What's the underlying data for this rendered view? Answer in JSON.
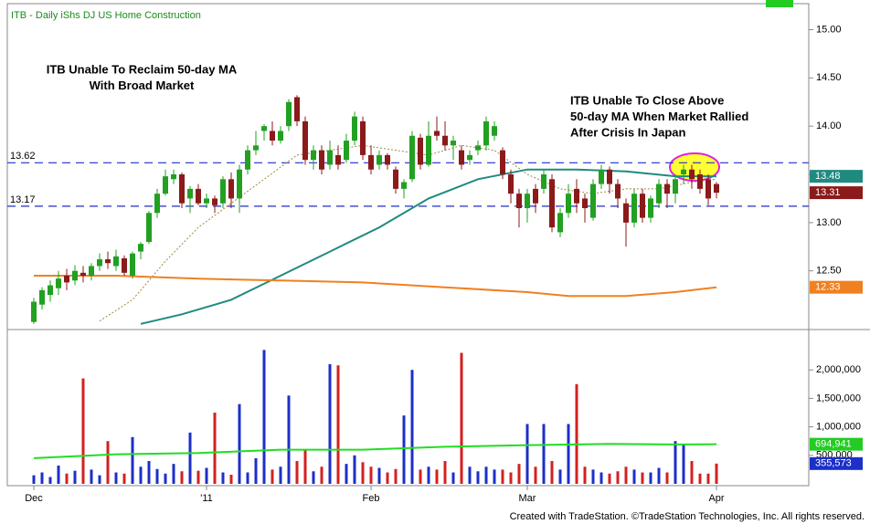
{
  "chart_data": {
    "type": "candlestick",
    "title": "ITB - Daily  iShs DJ US Home Construction",
    "categories": [
      "Dec",
      null,
      null,
      null,
      null,
      null,
      null,
      null,
      null,
      null,
      null,
      null,
      null,
      null,
      null,
      null,
      null,
      null,
      null,
      null,
      null,
      "'11",
      null,
      null,
      null,
      null,
      null,
      null,
      null,
      null,
      null,
      null,
      null,
      null,
      null,
      null,
      null,
      null,
      null,
      null,
      null,
      "Feb",
      null,
      null,
      null,
      null,
      null,
      null,
      null,
      null,
      null,
      null,
      null,
      null,
      null,
      null,
      null,
      null,
      null,
      null,
      "Mar",
      null,
      null,
      null,
      null,
      null,
      null,
      null,
      null,
      null,
      null,
      null,
      null,
      null,
      null,
      null,
      null,
      null,
      null,
      null,
      null,
      null,
      null,
      "Apr"
    ],
    "up_color": "#22a022",
    "down_color": "#8b1a1a",
    "ohlc": {
      "open": [
        11.97,
        12.15,
        12.25,
        12.32,
        12.45,
        12.4,
        12.48,
        12.45,
        12.55,
        12.62,
        12.55,
        12.63,
        12.45,
        12.7,
        12.8,
        13.1,
        13.3,
        13.45,
        13.5,
        13.25,
        13.35,
        13.2,
        13.25,
        13.2,
        13.45,
        13.25,
        13.55,
        13.75,
        13.95,
        13.95,
        13.85,
        14.0,
        14.3,
        14.05,
        13.65,
        13.75,
        13.6,
        13.7,
        13.65,
        13.85,
        14.05,
        13.7,
        13.6,
        13.7,
        13.55,
        13.35,
        13.45,
        13.88,
        13.6,
        13.95,
        13.9,
        13.8,
        13.75,
        13.65,
        13.75,
        13.8,
        13.9,
        13.75,
        13.5,
        13.3,
        13.15,
        13.35,
        13.35,
        13.45,
        12.9,
        13.1,
        13.35,
        13.25,
        13.05,
        13.4,
        13.55,
        13.4,
        13.2,
        13.0,
        13.3,
        13.05,
        13.2,
        13.4,
        13.3,
        13.5,
        13.55,
        13.5,
        13.45,
        13.4
      ],
      "high": [
        12.22,
        12.33,
        12.4,
        12.5,
        12.52,
        12.56,
        12.55,
        12.58,
        12.68,
        12.7,
        12.72,
        12.66,
        12.7,
        12.8,
        13.12,
        13.35,
        13.55,
        13.55,
        13.52,
        13.38,
        13.4,
        13.3,
        13.28,
        13.48,
        13.52,
        13.6,
        13.8,
        13.95,
        14.02,
        14.05,
        14.0,
        14.28,
        14.32,
        14.1,
        13.8,
        13.8,
        13.85,
        13.8,
        13.92,
        14.15,
        14.1,
        13.8,
        13.75,
        13.72,
        13.58,
        13.45,
        13.95,
        13.92,
        14.05,
        14.1,
        14.05,
        13.9,
        13.8,
        13.75,
        13.85,
        14.1,
        14.05,
        13.78,
        13.55,
        13.35,
        13.35,
        13.4,
        13.55,
        13.5,
        13.15,
        13.4,
        13.45,
        13.3,
        13.45,
        13.6,
        13.58,
        13.45,
        13.25,
        13.35,
        13.35,
        13.28,
        13.45,
        13.45,
        13.5,
        13.6,
        13.6,
        13.55,
        13.5,
        13.42
      ],
      "low": [
        11.95,
        12.1,
        12.18,
        12.25,
        12.3,
        12.35,
        12.38,
        12.4,
        12.5,
        12.52,
        12.5,
        12.45,
        12.42,
        12.62,
        12.78,
        13.05,
        13.28,
        13.4,
        13.15,
        13.1,
        13.18,
        13.15,
        13.1,
        13.15,
        13.15,
        13.1,
        13.5,
        13.7,
        13.85,
        13.8,
        13.82,
        13.95,
        14.0,
        13.6,
        13.55,
        13.5,
        13.55,
        13.55,
        13.62,
        13.8,
        13.65,
        13.5,
        13.55,
        13.55,
        13.3,
        13.25,
        13.42,
        13.55,
        13.58,
        13.85,
        13.75,
        13.65,
        13.55,
        13.6,
        13.7,
        13.75,
        13.85,
        13.45,
        13.2,
        12.95,
        13.0,
        13.1,
        13.3,
        12.9,
        12.85,
        13.05,
        13.1,
        13.0,
        13.02,
        13.35,
        13.3,
        13.15,
        12.75,
        12.95,
        13.0,
        13.0,
        13.15,
        13.15,
        13.2,
        13.4,
        13.35,
        13.3,
        13.18,
        13.25
      ],
      "close": [
        12.18,
        12.3,
        12.35,
        12.42,
        12.38,
        12.5,
        12.45,
        12.55,
        12.62,
        12.58,
        12.65,
        12.48,
        12.68,
        12.78,
        13.1,
        13.3,
        13.48,
        13.5,
        13.2,
        13.35,
        13.2,
        13.25,
        13.18,
        13.45,
        13.25,
        13.55,
        13.75,
        13.8,
        14.0,
        13.85,
        13.95,
        14.25,
        14.05,
        13.65,
        13.75,
        13.55,
        13.75,
        13.6,
        13.85,
        14.1,
        13.7,
        13.55,
        13.7,
        13.6,
        13.35,
        13.42,
        13.9,
        13.6,
        13.9,
        13.9,
        13.8,
        13.85,
        13.6,
        13.7,
        13.8,
        14.05,
        14.0,
        13.5,
        13.3,
        13.15,
        13.3,
        13.2,
        13.5,
        12.95,
        13.1,
        13.3,
        13.2,
        13.15,
        13.4,
        13.55,
        13.4,
        13.25,
        13.0,
        13.3,
        13.05,
        13.25,
        13.4,
        13.3,
        13.45,
        13.55,
        13.45,
        13.35,
        13.25,
        13.31
      ]
    },
    "ylim": [
      11.92,
      15.26
    ],
    "yticks": [
      {
        "value": 12.5,
        "label": "12.50"
      },
      {
        "value": 13,
        "label": "13.00"
      },
      {
        "value": 13.5,
        "label": "13.50"
      },
      {
        "value": 14,
        "label": "14.00"
      },
      {
        "value": 14.5,
        "label": "14.50"
      },
      {
        "value": 15,
        "label": "15.00"
      }
    ],
    "overlays": [
      {
        "color": "#9a8a40",
        "dashed": true,
        "x": [
          8,
          12,
          16,
          20,
          24,
          28,
          32,
          36,
          40,
          44,
          48,
          52,
          56,
          60,
          64,
          68,
          72,
          76,
          80,
          83
        ],
        "values": [
          11.98,
          12.2,
          12.6,
          12.95,
          13.2,
          13.45,
          13.7,
          13.75,
          13.8,
          13.75,
          13.7,
          13.8,
          13.75,
          13.5,
          13.35,
          13.3,
          13.35,
          13.35,
          13.42,
          13.45
        ]
      },
      {
        "color": "#1f8a80",
        "dashed": false,
        "x": [
          13,
          18,
          24,
          30,
          36,
          42,
          48,
          54,
          60,
          66,
          72,
          78,
          83
        ],
        "values": [
          11.95,
          12.05,
          12.2,
          12.45,
          12.7,
          12.95,
          13.25,
          13.45,
          13.55,
          13.55,
          13.53,
          13.48,
          13.48
        ]
      },
      {
        "color": "#f08020",
        "dashed": false,
        "x": [
          0,
          10,
          20,
          30,
          40,
          50,
          60,
          65,
          72,
          78,
          83
        ],
        "values": [
          12.45,
          12.45,
          12.42,
          12.4,
          12.38,
          12.33,
          12.28,
          12.24,
          12.24,
          12.28,
          12.33
        ]
      }
    ],
    "levels": [
      {
        "value": 13.62,
        "color": "#1c2fc9"
      },
      {
        "value": 13.17,
        "color": "#1c2fc9"
      }
    ],
    "price_tags": [
      {
        "value": 13.48,
        "color": "#1f8a80"
      },
      {
        "value": 13.31,
        "color": "#8b1a1a"
      },
      {
        "value": 12.33,
        "color": "#f08020"
      }
    ],
    "annotations": [
      {
        "lines": [
          "ITB Unable To Reclaim 50-day MA",
          "With Broad Market"
        ]
      },
      {
        "lines": [
          "ITB Unable To Close Above",
          "50-day MA When Market Rallied",
          "After Crisis In Japan"
        ]
      }
    ],
    "volume": {
      "up_color": "#1c2fc9",
      "down_color": "#d42020",
      "values": [
        150000,
        200000,
        120000,
        320000,
        180000,
        230000,
        1850000,
        250000,
        150000,
        750000,
        200000,
        180000,
        820000,
        300000,
        400000,
        260000,
        180000,
        350000,
        220000,
        900000,
        230000,
        280000,
        1250000,
        200000,
        160000,
        1400000,
        200000,
        450000,
        2350000,
        250000,
        300000,
        1550000,
        400000,
        600000,
        220000,
        300000,
        2100000,
        2080000,
        350000,
        500000,
        380000,
        300000,
        280000,
        200000,
        260000,
        1200000,
        2000000,
        250000,
        300000,
        250000,
        400000,
        200000,
        2300000,
        300000,
        220000,
        300000,
        250000,
        250000,
        200000,
        350000,
        1050000,
        300000,
        1050000,
        400000,
        250000,
        1050000,
        1750000,
        300000,
        250000,
        200000,
        180000,
        220000,
        300000,
        250000,
        200000,
        200000,
        280000,
        200000,
        750000,
        700000,
        400000,
        180000,
        180000,
        355573
      ],
      "ylim": [
        0,
        2500000
      ],
      "yticks": [
        {
          "value": 500000,
          "label": "500,000"
        },
        {
          "value": 1000000,
          "label": "1,000,000"
        },
        {
          "value": 1500000,
          "label": "1,500,000"
        },
        {
          "value": 2000000,
          "label": "2,000,000"
        }
      ],
      "ma": {
        "color": "#22dd22",
        "x": [
          0,
          10,
          20,
          30,
          40,
          50,
          60,
          70,
          78,
          83
        ],
        "values": [
          450000,
          520000,
          540000,
          600000,
          600000,
          650000,
          680000,
          700000,
          690000,
          694941
        ]
      },
      "tags": [
        {
          "value": 694941,
          "label": "694,941",
          "color": "#22cc22"
        },
        {
          "value": 355573,
          "label": "355,573",
          "color": "#1c2fc9"
        }
      ]
    },
    "footer": "Created with TradeStation. ©TradeStation Technologies, Inc. All rights reserved."
  }
}
